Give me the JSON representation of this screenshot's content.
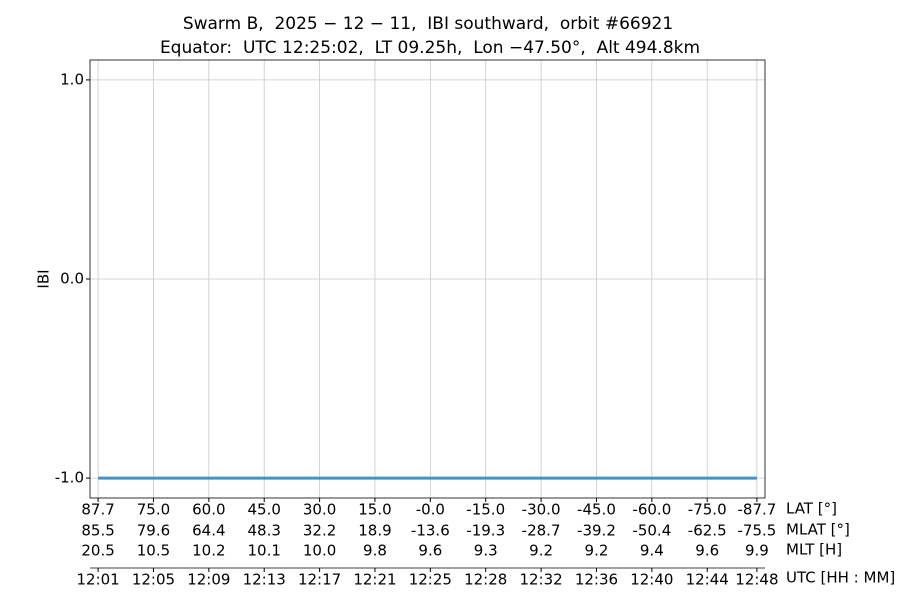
{
  "chart_data": {
    "type": "line",
    "title": "Swarm B,  2025 − 12 − 11,  IBI southward,  orbit #66921",
    "subtitle": "Equator:  UTC 12:25:02,  LT 09.25h,  Lon −47.50°,  Alt 494.8km",
    "y_label": "IBI",
    "x": [
      1.6,
      48.0
    ],
    "series": [
      {
        "name": "IBI",
        "color": "#4592c6",
        "values": [
          -1.0,
          -1.0
        ]
      }
    ],
    "xlim": [
      1.03,
      48.57
    ],
    "xticks": [
      {
        "value": 1.6,
        "label": "12:01"
      },
      {
        "value": 5.5,
        "label": "12:05"
      },
      {
        "value": 9.4,
        "label": "12:09"
      },
      {
        "value": 13.3,
        "label": "12:13"
      },
      {
        "value": 17.2,
        "label": "12:17"
      },
      {
        "value": 21.1,
        "label": "12:21"
      },
      {
        "value": 25.0,
        "label": "12:25"
      },
      {
        "value": 28.9,
        "label": "12:28"
      },
      {
        "value": 32.8,
        "label": "12:32"
      },
      {
        "value": 36.7,
        "label": "12:36"
      },
      {
        "value": 40.6,
        "label": "12:40"
      },
      {
        "value": 44.5,
        "label": "12:44"
      },
      {
        "value": 48.0,
        "label": "12:48"
      }
    ],
    "ylim": [
      -1.1,
      1.1
    ],
    "yticks": [
      {
        "value": -1.0,
        "label": "-1.0"
      },
      {
        "value": 0.0,
        "label": "0.0"
      },
      {
        "value": 1.0,
        "label": "1.0"
      }
    ],
    "grid": true,
    "extra_rows": [
      {
        "label": "LAT [°]",
        "values": [
          "87.7",
          "75.0",
          "60.0",
          "45.0",
          "30.0",
          "15.0",
          "-0.0",
          "-15.0",
          "-30.0",
          "-45.0",
          "-60.0",
          "-75.0",
          "-87.7"
        ]
      },
      {
        "label": "MLAT [°]",
        "values": [
          "85.5",
          "79.6",
          "64.4",
          "48.3",
          "32.2",
          "18.9",
          "-13.6",
          "-19.3",
          "-28.7",
          "-39.2",
          "-50.4",
          "-62.5",
          "-75.5"
        ]
      },
      {
        "label": "MLT [H]",
        "values": [
          "20.5",
          "10.5",
          "10.2",
          "10.1",
          "10.0",
          "9.8",
          "9.6",
          "9.3",
          "9.2",
          "9.2",
          "9.4",
          "9.6",
          "9.9"
        ]
      }
    ],
    "x_label": "UTC [HH : MM]"
  }
}
